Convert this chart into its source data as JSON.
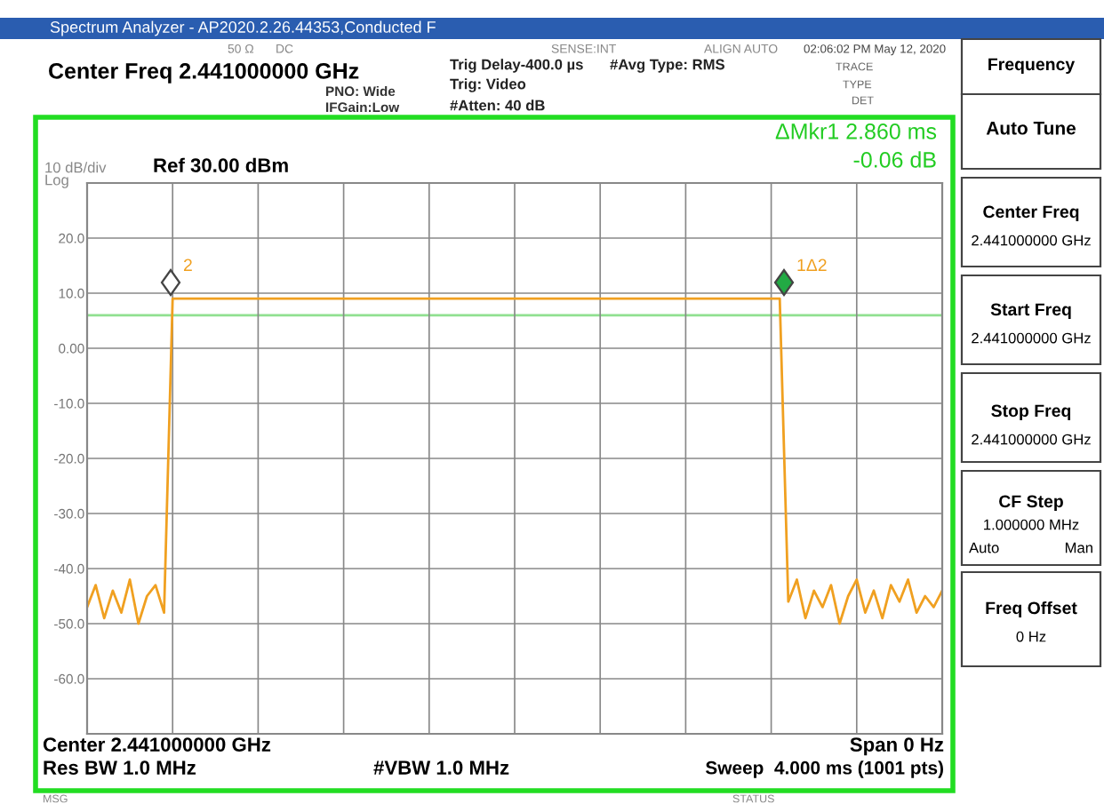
{
  "chart_data": {
    "type": "line",
    "title": "Spectrum Analyzer - AP2020.2.26.44353,Conducted F",
    "categories": [
      null,
      null,
      null,
      null,
      null,
      null,
      null,
      null,
      null,
      null,
      null,
      null,
      null,
      null,
      null,
      null,
      null,
      null,
      null,
      null,
      null,
      null,
      null,
      null,
      null,
      null,
      null,
      null,
      null,
      null,
      null,
      null,
      null,
      null,
      null,
      null,
      null,
      null,
      null,
      null,
      null,
      null,
      null,
      null,
      null,
      null,
      null,
      null,
      null,
      null,
      null,
      null,
      null,
      null,
      null,
      null,
      null,
      null,
      null,
      null,
      null,
      null,
      null,
      null,
      null,
      null,
      null,
      null,
      null,
      null,
      null,
      null,
      null,
      null,
      null,
      null,
      null,
      null,
      null,
      null,
      null,
      null,
      null,
      null,
      null,
      null,
      null,
      null,
      null,
      null,
      null,
      null,
      null,
      null,
      null,
      null,
      null,
      null,
      null,
      null,
      null
    ],
    "series": [
      {
        "color": "#f0a020",
        "values": [
          -47,
          -43,
          -49,
          -44,
          -48,
          -42,
          -50,
          -45,
          -43,
          -48,
          9,
          9,
          9,
          9,
          9,
          9,
          9,
          9,
          9,
          9,
          9,
          9,
          9,
          9,
          9,
          9,
          9,
          9,
          9,
          9,
          9,
          9,
          9,
          9,
          9,
          9,
          9,
          9,
          9,
          9,
          9,
          9,
          9,
          9,
          9,
          9,
          9,
          9,
          9,
          9,
          9,
          9,
          9,
          9,
          9,
          9,
          9,
          9,
          9,
          9,
          9,
          9,
          9,
          9,
          9,
          9,
          9,
          9,
          9,
          9,
          9,
          9,
          9,
          9,
          9,
          9,
          9,
          9,
          9,
          9,
          9,
          9,
          -46,
          -42,
          -49,
          -44,
          -47,
          -43,
          -50,
          -45,
          -42,
          -48,
          -44,
          -49,
          -43,
          -46,
          -42,
          -48,
          -45,
          -47,
          -44
        ]
      }
    ],
    "ylim": [
      -70,
      30
    ],
    "yticks": [
      {
        "value": 20,
        "label": "20.0"
      },
      {
        "value": 10,
        "label": "10.0"
      },
      {
        "value": 0,
        "label": "0.00"
      },
      {
        "value": -10,
        "label": "-10.0"
      },
      {
        "value": -20,
        "label": "-20.0"
      },
      {
        "value": -30,
        "label": "-30.0"
      },
      {
        "value": -40,
        "label": "-40.0"
      },
      {
        "value": -50,
        "label": "-50.0"
      },
      {
        "value": -60,
        "label": "-60.0"
      }
    ],
    "tick_labels": "y",
    "grid": true,
    "ref_lines": [
      {
        "axis": "y",
        "value": 6,
        "color": "#90e090"
      }
    ],
    "annotations": [
      "2",
      "1Δ2",
      "50 Ω",
      "DC",
      "SENSE:INT",
      "ALIGN AUTO",
      "02:06:02 PM May 12, 2020",
      "Center Freq 2.441000000 GHz",
      "PNO: Wide",
      "IFGain:Low",
      "Trig Delay-400.0 µs",
      "Trig: Video",
      "#Atten: 40 dB",
      "#Avg Type: RMS",
      "TRACE",
      "TYPE",
      "DET",
      "ΔMkr1 2.860 ms",
      "-0.06 dB",
      "10 dB/div",
      "Log",
      "Ref 30.00 dBm",
      "Center 2.441000000 GHz",
      "Span 0 Hz",
      "Res BW 1.0 MHz",
      "#VBW 1.0 MHz",
      "Sweep  4.000 ms (1001 pts)",
      "MSG",
      "STATUS",
      "Frequency",
      "Auto Tune",
      "Center Freq",
      "2.441000000 GHz",
      "Start Freq",
      "2.441000000 GHz",
      "Stop Freq",
      "2.441000000 GHz",
      "CF Step",
      "1.000000 MHz",
      "Auto",
      "Man",
      "Freq Offset",
      "0 Hz"
    ]
  }
}
